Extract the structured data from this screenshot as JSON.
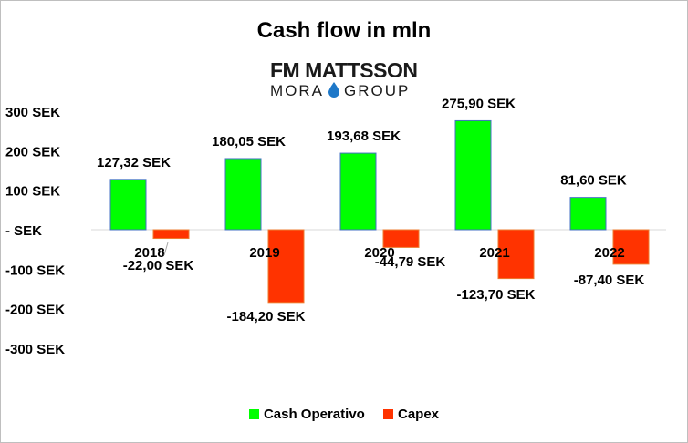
{
  "chart_data": {
    "type": "bar",
    "title": "Cash flow in mln",
    "categories": [
      "2018",
      "2019",
      "2020",
      "2021",
      "2022"
    ],
    "series": [
      {
        "name": "Cash Operativo",
        "color": "#00ff00",
        "values": [
          127.32,
          180.05,
          193.68,
          275.9,
          81.6
        ],
        "labels": [
          "127,32 SEK",
          "180,05 SEK",
          "193,68 SEK",
          "275,90 SEK",
          "81,60 SEK"
        ]
      },
      {
        "name": "Capex",
        "color": "#ff3300",
        "values": [
          -22.0,
          -184.2,
          -44.79,
          -123.7,
          -87.4
        ],
        "labels": [
          "-22,00 SEK",
          "-184,20 SEK",
          "-44,79 SEK",
          "-123,70 SEK",
          "-87,40 SEK"
        ]
      }
    ],
    "y_ticks": [
      300,
      200,
      100,
      0,
      -100,
      -200,
      -300
    ],
    "y_tick_labels": [
      "300 SEK",
      "200 SEK",
      "100 SEK",
      "- SEK",
      "-100 SEK",
      "-200 SEK",
      "-300 SEK"
    ],
    "ylim": [
      -300,
      300
    ],
    "grid": false,
    "legend_position": "bottom"
  },
  "logo": {
    "line1": "FM MATTSSON",
    "line2_left": "MORA",
    "line2_right": "GROUP",
    "drop_color": "#1e78c8"
  }
}
